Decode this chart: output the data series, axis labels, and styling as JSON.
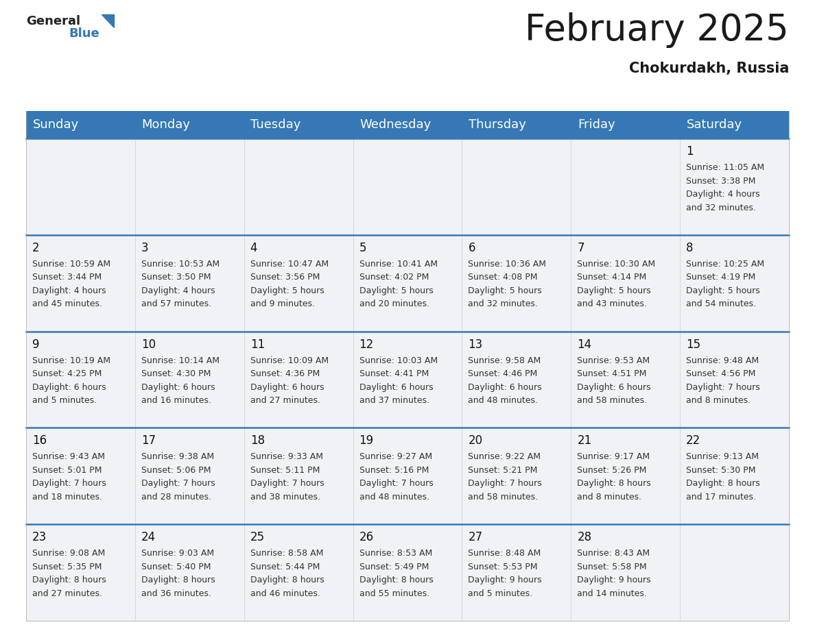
{
  "title": "February 2025",
  "subtitle": "Chokurdakh, Russia",
  "header_color": "#3578b5",
  "header_text_color": "#ffffff",
  "cell_bg": "#f0f2f5",
  "border_color": "#3578b5",
  "row_sep_color": "#3578b5",
  "day_names": [
    "Sunday",
    "Monday",
    "Tuesday",
    "Wednesday",
    "Thursday",
    "Friday",
    "Saturday"
  ],
  "title_fontsize": 38,
  "subtitle_fontsize": 15,
  "day_header_fontsize": 13,
  "day_num_fontsize": 12,
  "cell_text_fontsize": 9,
  "days": [
    {
      "date": 1,
      "col": 6,
      "row": 0,
      "sunrise": "11:05 AM",
      "sunset": "3:38 PM",
      "daylight_h": "4 hours",
      "daylight_m": "32 minutes."
    },
    {
      "date": 2,
      "col": 0,
      "row": 1,
      "sunrise": "10:59 AM",
      "sunset": "3:44 PM",
      "daylight_h": "4 hours",
      "daylight_m": "45 minutes."
    },
    {
      "date": 3,
      "col": 1,
      "row": 1,
      "sunrise": "10:53 AM",
      "sunset": "3:50 PM",
      "daylight_h": "4 hours",
      "daylight_m": "57 minutes."
    },
    {
      "date": 4,
      "col": 2,
      "row": 1,
      "sunrise": "10:47 AM",
      "sunset": "3:56 PM",
      "daylight_h": "5 hours",
      "daylight_m": "9 minutes."
    },
    {
      "date": 5,
      "col": 3,
      "row": 1,
      "sunrise": "10:41 AM",
      "sunset": "4:02 PM",
      "daylight_h": "5 hours",
      "daylight_m": "20 minutes."
    },
    {
      "date": 6,
      "col": 4,
      "row": 1,
      "sunrise": "10:36 AM",
      "sunset": "4:08 PM",
      "daylight_h": "5 hours",
      "daylight_m": "32 minutes."
    },
    {
      "date": 7,
      "col": 5,
      "row": 1,
      "sunrise": "10:30 AM",
      "sunset": "4:14 PM",
      "daylight_h": "5 hours",
      "daylight_m": "43 minutes."
    },
    {
      "date": 8,
      "col": 6,
      "row": 1,
      "sunrise": "10:25 AM",
      "sunset": "4:19 PM",
      "daylight_h": "5 hours",
      "daylight_m": "54 minutes."
    },
    {
      "date": 9,
      "col": 0,
      "row": 2,
      "sunrise": "10:19 AM",
      "sunset": "4:25 PM",
      "daylight_h": "6 hours",
      "daylight_m": "5 minutes."
    },
    {
      "date": 10,
      "col": 1,
      "row": 2,
      "sunrise": "10:14 AM",
      "sunset": "4:30 PM",
      "daylight_h": "6 hours",
      "daylight_m": "16 minutes."
    },
    {
      "date": 11,
      "col": 2,
      "row": 2,
      "sunrise": "10:09 AM",
      "sunset": "4:36 PM",
      "daylight_h": "6 hours",
      "daylight_m": "27 minutes."
    },
    {
      "date": 12,
      "col": 3,
      "row": 2,
      "sunrise": "10:03 AM",
      "sunset": "4:41 PM",
      "daylight_h": "6 hours",
      "daylight_m": "37 minutes."
    },
    {
      "date": 13,
      "col": 4,
      "row": 2,
      "sunrise": "9:58 AM",
      "sunset": "4:46 PM",
      "daylight_h": "6 hours",
      "daylight_m": "48 minutes."
    },
    {
      "date": 14,
      "col": 5,
      "row": 2,
      "sunrise": "9:53 AM",
      "sunset": "4:51 PM",
      "daylight_h": "6 hours",
      "daylight_m": "58 minutes."
    },
    {
      "date": 15,
      "col": 6,
      "row": 2,
      "sunrise": "9:48 AM",
      "sunset": "4:56 PM",
      "daylight_h": "7 hours",
      "daylight_m": "8 minutes."
    },
    {
      "date": 16,
      "col": 0,
      "row": 3,
      "sunrise": "9:43 AM",
      "sunset": "5:01 PM",
      "daylight_h": "7 hours",
      "daylight_m": "18 minutes."
    },
    {
      "date": 17,
      "col": 1,
      "row": 3,
      "sunrise": "9:38 AM",
      "sunset": "5:06 PM",
      "daylight_h": "7 hours",
      "daylight_m": "28 minutes."
    },
    {
      "date": 18,
      "col": 2,
      "row": 3,
      "sunrise": "9:33 AM",
      "sunset": "5:11 PM",
      "daylight_h": "7 hours",
      "daylight_m": "38 minutes."
    },
    {
      "date": 19,
      "col": 3,
      "row": 3,
      "sunrise": "9:27 AM",
      "sunset": "5:16 PM",
      "daylight_h": "7 hours",
      "daylight_m": "48 minutes."
    },
    {
      "date": 20,
      "col": 4,
      "row": 3,
      "sunrise": "9:22 AM",
      "sunset": "5:21 PM",
      "daylight_h": "7 hours",
      "daylight_m": "58 minutes."
    },
    {
      "date": 21,
      "col": 5,
      "row": 3,
      "sunrise": "9:17 AM",
      "sunset": "5:26 PM",
      "daylight_h": "8 hours",
      "daylight_m": "8 minutes."
    },
    {
      "date": 22,
      "col": 6,
      "row": 3,
      "sunrise": "9:13 AM",
      "sunset": "5:30 PM",
      "daylight_h": "8 hours",
      "daylight_m": "17 minutes."
    },
    {
      "date": 23,
      "col": 0,
      "row": 4,
      "sunrise": "9:08 AM",
      "sunset": "5:35 PM",
      "daylight_h": "8 hours",
      "daylight_m": "27 minutes."
    },
    {
      "date": 24,
      "col": 1,
      "row": 4,
      "sunrise": "9:03 AM",
      "sunset": "5:40 PM",
      "daylight_h": "8 hours",
      "daylight_m": "36 minutes."
    },
    {
      "date": 25,
      "col": 2,
      "row": 4,
      "sunrise": "8:58 AM",
      "sunset": "5:44 PM",
      "daylight_h": "8 hours",
      "daylight_m": "46 minutes."
    },
    {
      "date": 26,
      "col": 3,
      "row": 4,
      "sunrise": "8:53 AM",
      "sunset": "5:49 PM",
      "daylight_h": "8 hours",
      "daylight_m": "55 minutes."
    },
    {
      "date": 27,
      "col": 4,
      "row": 4,
      "sunrise": "8:48 AM",
      "sunset": "5:53 PM",
      "daylight_h": "9 hours",
      "daylight_m": "5 minutes."
    },
    {
      "date": 28,
      "col": 5,
      "row": 4,
      "sunrise": "8:43 AM",
      "sunset": "5:58 PM",
      "daylight_h": "9 hours",
      "daylight_m": "14 minutes."
    }
  ]
}
